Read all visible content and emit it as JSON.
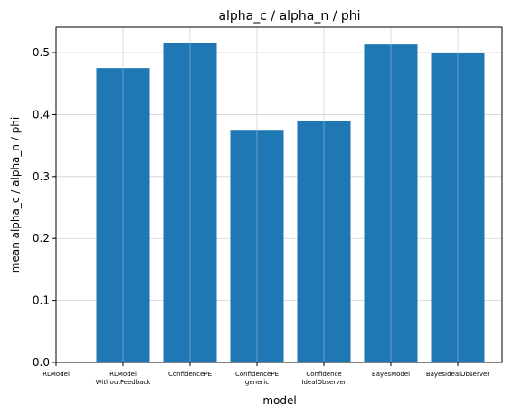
{
  "chart_data": {
    "type": "bar",
    "title": "alpha_c / alpha_n / phi",
    "xlabel": "model",
    "ylabel": "mean alpha_c / alpha_n / phi",
    "categories": [
      [
        "RLModel"
      ],
      [
        "RLModel",
        "WithoutFeedback"
      ],
      [
        "ConfidencePE"
      ],
      [
        "ConfidencePE",
        "generic"
      ],
      [
        "Confidence",
        "IdealObserver"
      ],
      [
        "BayesModel"
      ],
      [
        "BayesIdealObserver"
      ]
    ],
    "values": [
      null,
      0.475,
      0.516,
      0.374,
      0.39,
      0.513,
      0.499
    ],
    "ylim": [
      0,
      0.541
    ],
    "yticks": [
      0.0,
      0.1,
      0.2,
      0.3,
      0.4,
      0.5
    ],
    "ytick_labels": [
      "0.0",
      "0.1",
      "0.2",
      "0.3",
      "0.4",
      "0.5"
    ],
    "grid": true,
    "bar_color": "#1f77b4",
    "grid_color": "#d3d3d3"
  }
}
